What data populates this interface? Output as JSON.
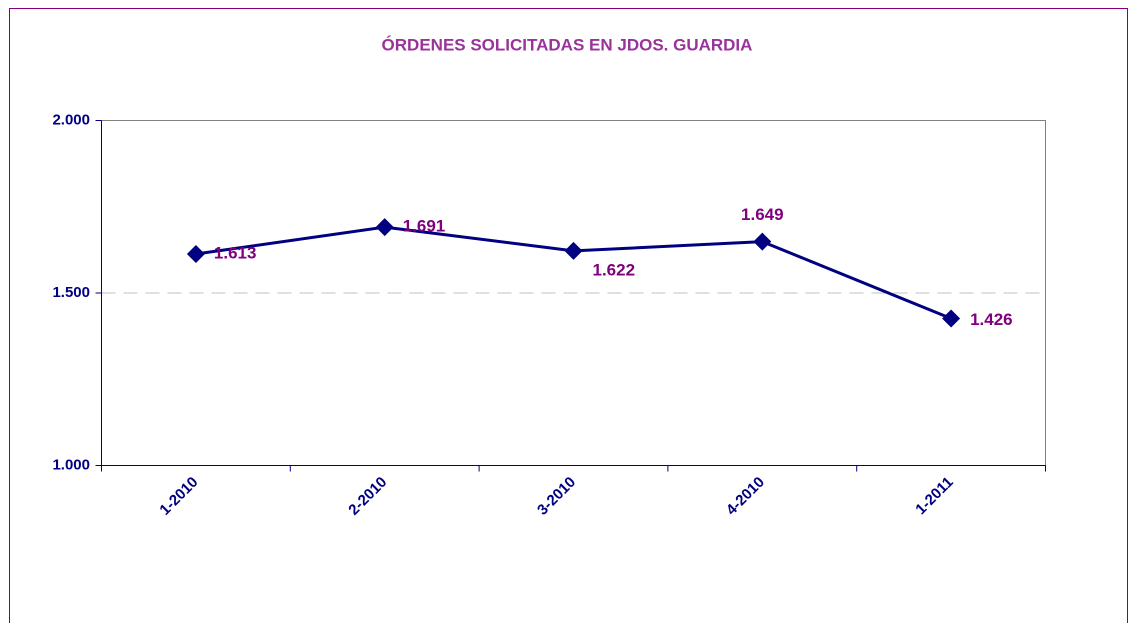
{
  "chart_data": {
    "type": "line",
    "title": "ÓRDENES SOLICITADAS EN JDOS. GUARDIA",
    "categories": [
      "1-2010",
      "2-2010",
      "3-2010",
      "4-2010",
      "1-2011"
    ],
    "values": [
      1613,
      1691,
      1622,
      1649,
      1426
    ],
    "value_labels": [
      "1.613",
      "1.691",
      "1.622",
      "1.649",
      "1.426"
    ],
    "color": "#000080",
    "label_color": "#800080",
    "ylim": [
      1000,
      2000
    ],
    "yticks": [
      {
        "value": 1000,
        "label": "1.000"
      },
      {
        "value": 1500,
        "label": "1.500"
      },
      {
        "value": 2000,
        "label": "2.000"
      }
    ],
    "grid": true
  }
}
